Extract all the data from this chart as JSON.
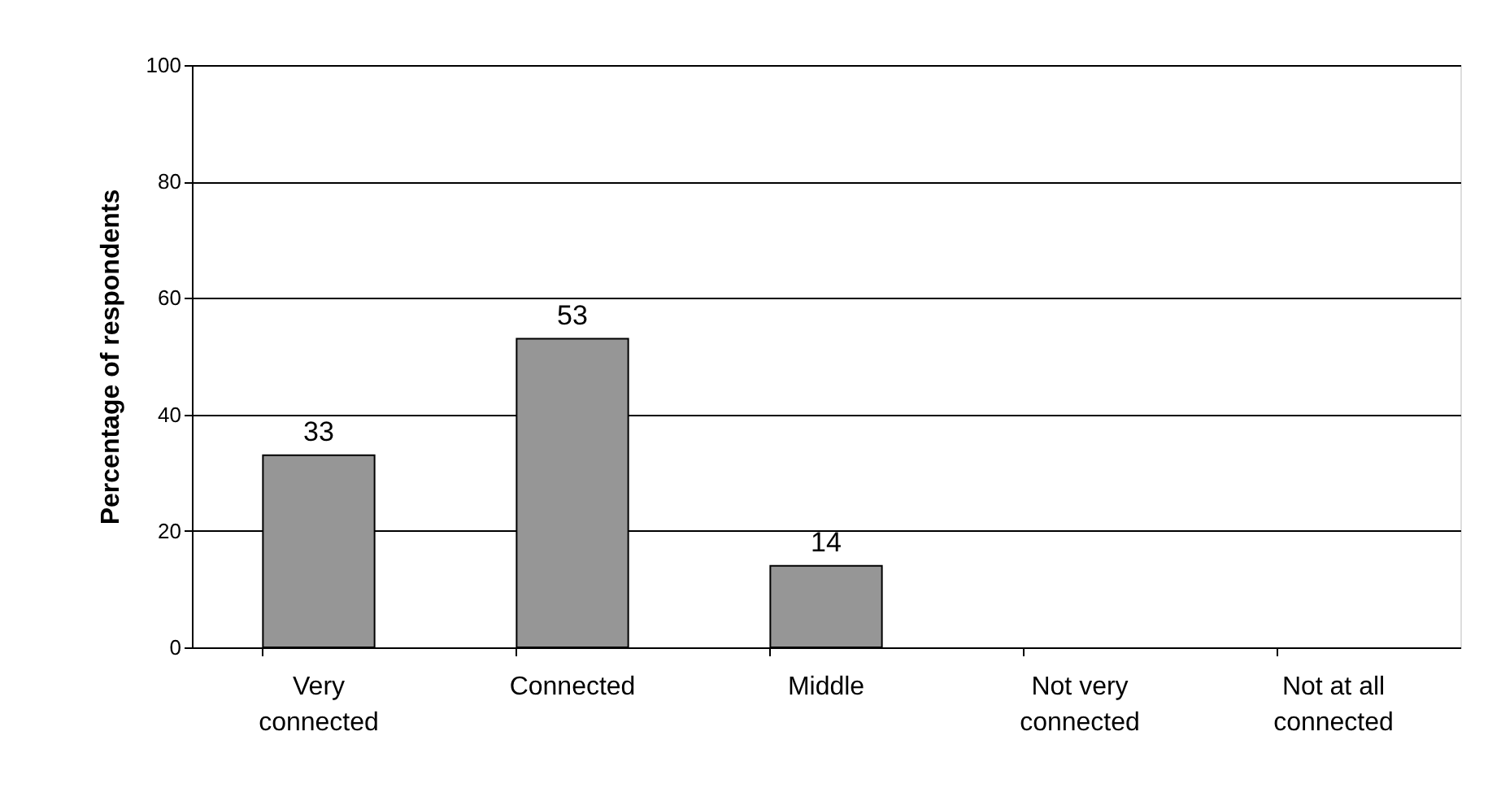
{
  "chart_data": {
    "type": "bar",
    "ylabel": "Percentage of respondents",
    "categories": [
      "Very connected",
      "Connected",
      "Middle",
      "Not very connected",
      "Not at all connected"
    ],
    "values": [
      33,
      53,
      14,
      null,
      null
    ],
    "color": "#969696",
    "ylim": [
      0,
      100
    ],
    "yticks": [
      0,
      20,
      40,
      60,
      80,
      100
    ],
    "grid": "y",
    "data_labels": true
  }
}
